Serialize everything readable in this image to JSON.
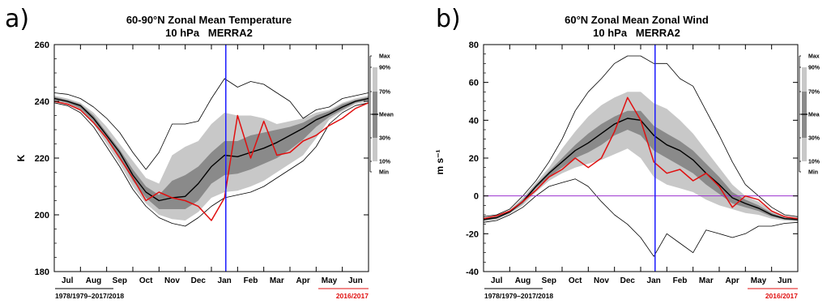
{
  "chart_data": [
    {
      "type": "line",
      "panel_label": "a)",
      "title_line1": "60-90°N Zonal Mean Temperature",
      "title_line2": "10 hPa   MERRA2",
      "ylabel": "K",
      "ylim": [
        180,
        260
      ],
      "yticks": [
        180,
        200,
        220,
        240,
        260
      ],
      "months": [
        "Jul",
        "Aug",
        "Sep",
        "Oct",
        "Nov",
        "Dec",
        "Jan",
        "Feb",
        "Mar",
        "Apr",
        "May",
        "Jun"
      ],
      "marker_month": 6.55,
      "zero_line": false,
      "period_climatology": "1978/1979–2017/2018",
      "period_highlight": "2016/2017",
      "x": [
        0,
        0.5,
        1,
        1.5,
        2,
        2.5,
        3,
        3.5,
        4,
        4.5,
        5,
        5.5,
        6,
        6.5,
        7,
        7.5,
        8,
        8.5,
        9,
        9.5,
        10,
        10.5,
        11,
        11.5,
        12
      ],
      "series": [
        {
          "role": "max",
          "values": [
            243,
            242.5,
            241,
            238,
            234,
            229,
            222,
            216,
            222,
            232,
            232,
            233,
            241,
            248,
            245,
            247,
            246,
            243,
            240,
            234,
            237,
            238,
            241,
            242,
            243
          ]
        },
        {
          "role": "p90",
          "values": [
            242,
            241,
            239.5,
            236,
            231,
            225,
            219,
            213,
            211,
            221,
            224,
            226,
            232,
            236,
            235,
            235,
            234,
            232,
            233,
            234,
            236,
            237,
            239.5,
            241,
            242
          ]
        },
        {
          "role": "p70",
          "values": [
            241.5,
            240.5,
            239,
            235,
            229,
            223,
            216,
            210,
            207,
            212,
            214,
            217,
            222,
            226,
            226,
            228,
            229,
            230,
            231,
            232.5,
            235,
            236.5,
            239,
            240.5,
            241.5
          ]
        },
        {
          "role": "mean",
          "values": [
            241,
            240,
            238.5,
            234,
            228,
            222,
            214,
            208,
            205,
            206,
            206.5,
            211,
            217,
            221,
            220.5,
            222,
            223.5,
            225.5,
            228,
            230.5,
            233.5,
            235.5,
            238,
            240,
            241
          ]
        },
        {
          "role": "p30",
          "values": [
            240.5,
            239.5,
            237.5,
            233,
            227,
            220,
            212,
            206,
            202,
            202,
            202,
            205,
            211,
            214,
            214.5,
            216,
            218,
            220,
            223,
            226.5,
            231,
            234.5,
            237,
            239.5,
            240.5
          ]
        },
        {
          "role": "p10",
          "values": [
            240,
            239,
            236.5,
            232,
            225,
            218,
            210,
            204,
            200,
            198.5,
            198,
            201,
            206,
            208,
            208.5,
            210,
            212,
            215,
            218,
            221,
            227,
            233.5,
            236.5,
            239,
            240
          ]
        },
        {
          "role": "min",
          "values": [
            239.5,
            238.5,
            236,
            231,
            224,
            217,
            209,
            203,
            199,
            197,
            196,
            199,
            203,
            206,
            207,
            208,
            210,
            213,
            216,
            219,
            224,
            232,
            236,
            238.5,
            239.5
          ]
        },
        {
          "role": "highlight",
          "values": [
            240,
            239,
            237,
            232.5,
            227,
            220,
            213,
            205,
            208,
            206,
            205,
            203,
            198,
            206,
            235,
            220,
            233,
            221,
            222,
            226,
            228,
            231.5,
            234,
            237.5,
            239.5
          ]
        }
      ],
      "colors": {
        "outer_band": "#c8c8c8",
        "inner_band": "#8a8a8a",
        "mean": "#000000",
        "highlight": "#e01010",
        "marker": "#1a1aff"
      }
    },
    {
      "type": "line",
      "panel_label": "b)",
      "title_line1": "60°N Zonal Mean Zonal Wind",
      "title_line2": "10 hPa   MERRA2",
      "ylabel": "m s⁻¹",
      "ylim": [
        -40,
        80
      ],
      "yticks": [
        -40,
        -20,
        0,
        20,
        40,
        60,
        80
      ],
      "months": [
        "Jul",
        "Aug",
        "Sep",
        "Oct",
        "Nov",
        "Dec",
        "Jan",
        "Feb",
        "Mar",
        "Apr",
        "May",
        "Jun"
      ],
      "marker_month": 6.55,
      "zero_line": true,
      "period_climatology": "1978/1979–2017/2018",
      "period_highlight": "2016/2017",
      "x": [
        0,
        0.5,
        1,
        1.5,
        2,
        2.5,
        3,
        3.5,
        4,
        4.5,
        5,
        5.5,
        6,
        6.5,
        7,
        7.5,
        8,
        8.5,
        9,
        9.5,
        10,
        10.5,
        11,
        11.5,
        12
      ],
      "series": [
        {
          "role": "max",
          "values": [
            -11,
            -10,
            -7,
            0,
            8,
            18,
            30,
            45,
            55,
            62,
            70,
            74,
            74,
            70,
            70,
            62,
            58,
            45,
            32,
            18,
            6,
            0,
            -6,
            -10,
            -11
          ]
        },
        {
          "role": "p90",
          "values": [
            -11.5,
            -10.5,
            -7.5,
            -1,
            7,
            15,
            25,
            34,
            42,
            48,
            52,
            55,
            55,
            49,
            46,
            40,
            33,
            24,
            15,
            6,
            0,
            -3,
            -8,
            -11,
            -11.5
          ]
        },
        {
          "role": "p70",
          "values": [
            -12,
            -11,
            -8,
            -2,
            6,
            13,
            20,
            27,
            33,
            38,
            42,
            45,
            45,
            37,
            33,
            29,
            24,
            17,
            10,
            2,
            -2,
            -5,
            -9,
            -11.5,
            -12
          ]
        },
        {
          "role": "mean",
          "values": [
            -12.5,
            -11.5,
            -8.5,
            -3,
            5,
            12,
            18,
            24,
            28,
            33,
            38,
            41,
            40,
            32,
            27,
            24,
            19,
            12,
            6,
            -1,
            -4,
            -6.5,
            -10,
            -12,
            -12.5
          ]
        },
        {
          "role": "p30",
          "values": [
            -13,
            -12,
            -9,
            -4,
            4,
            10,
            15,
            20,
            23,
            27,
            32,
            35,
            32,
            24,
            20,
            16,
            12,
            6,
            1,
            -4,
            -6,
            -8,
            -11,
            -12.5,
            -13
          ]
        },
        {
          "role": "p10",
          "values": [
            -13.5,
            -12.5,
            -9.5,
            -5,
            2,
            8,
            12,
            15,
            17,
            19,
            22,
            25,
            20,
            10,
            6,
            4,
            2,
            -2,
            -5,
            -7,
            -9,
            -10,
            -12,
            -13,
            -13.5
          ]
        },
        {
          "role": "min",
          "values": [
            -14,
            -13,
            -10,
            -6,
            0,
            5,
            7,
            9,
            5,
            -3,
            -10,
            -15,
            -22,
            -32,
            -20,
            -25,
            -30,
            -18,
            -20,
            -22,
            -20,
            -16,
            -16,
            -14.5,
            -14
          ]
        },
        {
          "role": "highlight",
          "values": [
            -12,
            -10.5,
            -8,
            -3,
            3,
            10,
            14,
            20,
            15,
            20,
            34,
            52,
            40,
            18,
            12,
            14,
            8,
            12,
            5,
            -6,
            0,
            -2,
            -8,
            -11,
            -12
          ]
        }
      ],
      "colors": {
        "outer_band": "#c8c8c8",
        "inner_band": "#8a8a8a",
        "mean": "#000000",
        "highlight": "#e01010",
        "marker": "#1a1aff",
        "zero_line": "#9b30d0"
      }
    }
  ],
  "legend": {
    "labels": [
      "Max",
      "90%",
      "70%",
      "Mean",
      "30%",
      "10%",
      "Min"
    ],
    "labels_b": [
      "Max",
      "90%",
      "70%",
      "Mea",
      "30%",
      "10%",
      "Min"
    ]
  }
}
